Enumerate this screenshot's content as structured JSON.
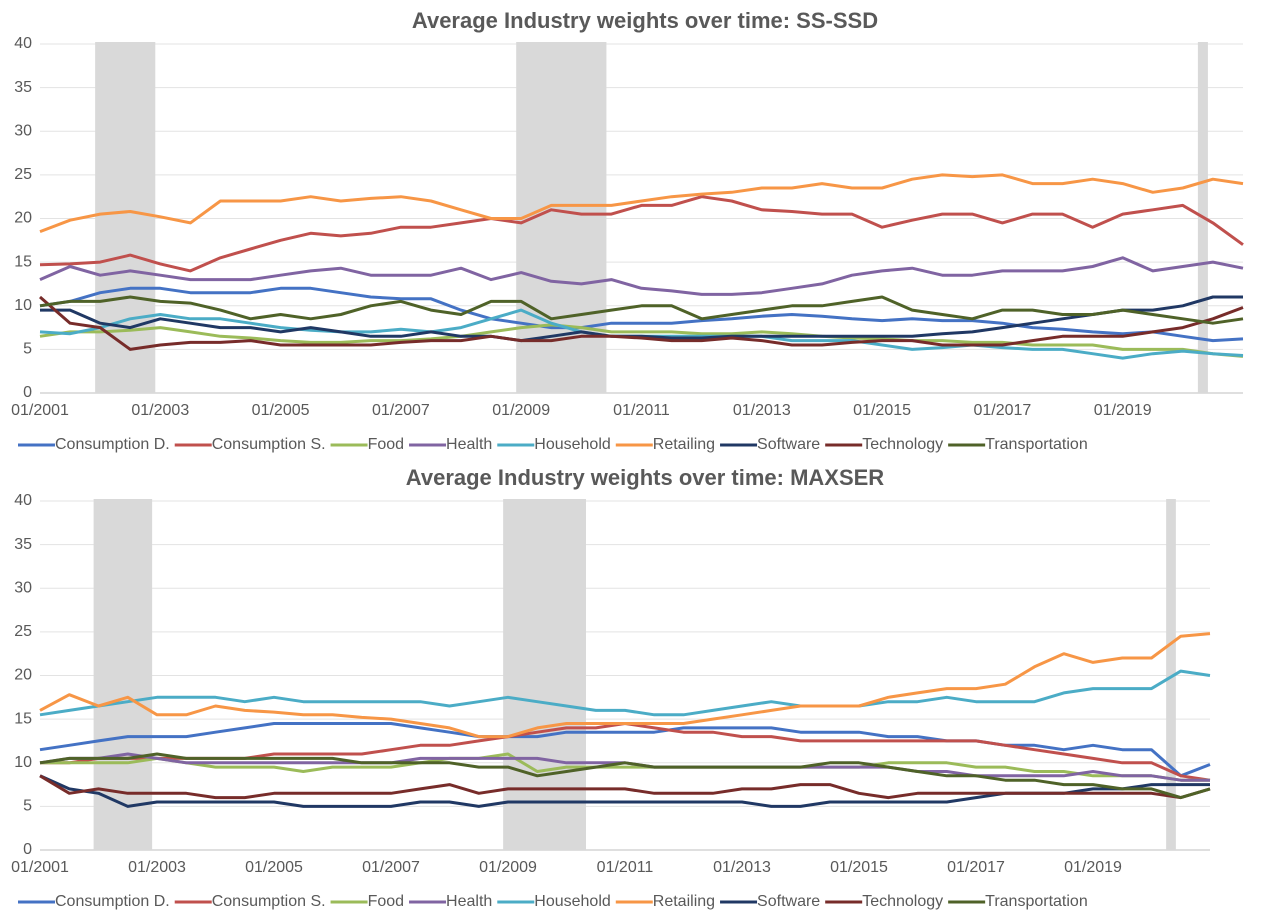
{
  "chart_data": [
    {
      "type": "line",
      "title": "Average Industry weights over time: SS-SSD",
      "x": [
        "01/2001",
        "07/2001",
        "01/2002",
        "07/2002",
        "01/2003",
        "07/2003",
        "01/2004",
        "07/2004",
        "01/2005",
        "07/2005",
        "01/2006",
        "07/2006",
        "01/2007",
        "07/2007",
        "01/2008",
        "07/2008",
        "01/2009",
        "07/2009",
        "01/2010",
        "07/2010",
        "01/2011",
        "07/2011",
        "01/2012",
        "07/2012",
        "01/2013",
        "07/2013",
        "01/2014",
        "07/2014",
        "01/2015",
        "07/2015",
        "01/2016",
        "07/2016",
        "01/2017",
        "07/2017",
        "01/2018",
        "07/2018",
        "01/2019",
        "07/2019",
        "01/2020",
        "07/2020",
        "01/2021"
      ],
      "xlim": [
        "01/2001",
        "01/2021"
      ],
      "xticks": [
        "01/2001",
        "01/2003",
        "01/2005",
        "01/2007",
        "01/2009",
        "01/2011",
        "01/2013",
        "01/2015",
        "01/2017",
        "01/2019"
      ],
      "ylim": [
        0,
        40
      ],
      "yticks": [
        0,
        5,
        10,
        15,
        20,
        25,
        30,
        35,
        40
      ],
      "grid": true,
      "shaded_periods": [
        {
          "start": "12/2001",
          "end": "12/2002"
        },
        {
          "start": "12/2008",
          "end": "06/2010"
        },
        {
          "start": "04/2020",
          "end": "06/2020"
        }
      ],
      "shade_color": "#d9d9d9",
      "legend": "bottom",
      "series": [
        {
          "name": "Consumption D.",
          "color": "#4472c4",
          "values": [
            10,
            10.5,
            11.5,
            12,
            12,
            11.5,
            11.5,
            11.5,
            12,
            12,
            11.5,
            11,
            10.8,
            10.8,
            9.5,
            8.5,
            8,
            7.5,
            7.5,
            8,
            8,
            8,
            8.3,
            8.5,
            8.8,
            9,
            8.8,
            8.5,
            8.3,
            8.5,
            8.3,
            8.3,
            8,
            7.5,
            7.3,
            7,
            6.8,
            7,
            6.5,
            6,
            6.2
          ]
        },
        {
          "name": "Consumption S.",
          "color": "#c0504d",
          "values": [
            14.7,
            14.8,
            15,
            15.8,
            14.8,
            14,
            15.5,
            16.5,
            17.5,
            18.3,
            18,
            18.3,
            19,
            19,
            19.5,
            20,
            19.5,
            21,
            20.5,
            20.5,
            21.5,
            21.5,
            22.5,
            22,
            21,
            20.8,
            20.5,
            20.5,
            19,
            19.8,
            20.5,
            20.5,
            19.5,
            20.5,
            20.5,
            19,
            20.5,
            21,
            21.5,
            19.5,
            17
          ]
        },
        {
          "name": "Food",
          "color": "#9bbb59",
          "values": [
            6.5,
            7,
            7,
            7.2,
            7.5,
            7,
            6.5,
            6.3,
            6,
            5.8,
            5.8,
            6,
            6,
            6.2,
            6.5,
            7,
            7.5,
            7.8,
            7.5,
            7,
            7,
            7,
            6.8,
            6.8,
            7,
            6.8,
            6.5,
            6.3,
            6.2,
            6,
            6,
            5.8,
            5.8,
            5.5,
            5.5,
            5.5,
            5,
            5,
            5,
            4.5,
            4.2
          ]
        },
        {
          "name": "Health",
          "color": "#8064a2",
          "values": [
            13,
            14.5,
            13.5,
            14,
            13.5,
            13,
            13,
            13,
            13.5,
            14,
            14.3,
            13.5,
            13.5,
            13.5,
            14.3,
            13,
            13.8,
            12.8,
            12.5,
            13,
            12,
            11.7,
            11.3,
            11.3,
            11.5,
            12,
            12.5,
            13.5,
            14,
            14.3,
            13.5,
            13.5,
            14,
            14,
            14,
            14.5,
            15.5,
            14,
            14.5,
            15,
            14.3
          ]
        },
        {
          "name": "Household",
          "color": "#4bacc6",
          "values": [
            7,
            6.8,
            7.5,
            8.5,
            9,
            8.5,
            8.5,
            8,
            7.5,
            7.2,
            7,
            7,
            7.3,
            7,
            7.5,
            8.5,
            9.5,
            8,
            7,
            6.5,
            6.5,
            6.5,
            6.5,
            6.5,
            6.5,
            6,
            6,
            6,
            5.5,
            5,
            5.2,
            5.5,
            5.2,
            5,
            5,
            4.5,
            4,
            4.5,
            4.8,
            4.5,
            4.3
          ]
        },
        {
          "name": "Retailing",
          "color": "#f79646",
          "values": [
            18.5,
            19.8,
            20.5,
            20.8,
            20.2,
            19.5,
            22,
            22,
            22,
            22.5,
            22,
            22.3,
            22.5,
            22,
            21,
            20,
            20,
            21.5,
            21.5,
            21.5,
            22,
            22.5,
            22.8,
            23,
            23.5,
            23.5,
            24,
            23.5,
            23.5,
            24.5,
            25,
            24.8,
            25,
            24,
            24,
            24.5,
            24,
            23,
            23.5,
            24.5,
            24
          ]
        },
        {
          "name": "Software",
          "color": "#203864",
          "values": [
            9.5,
            9.5,
            8,
            7.5,
            8.5,
            8,
            7.5,
            7.5,
            7,
            7.5,
            7,
            6.5,
            6.5,
            7,
            6.5,
            6.5,
            6,
            6.5,
            7,
            6.5,
            6.5,
            6.3,
            6.3,
            6.5,
            6.5,
            6.5,
            6.5,
            6.5,
            6.5,
            6.5,
            6.8,
            7,
            7.5,
            8,
            8.5,
            9,
            9.5,
            9.5,
            10,
            11,
            11
          ]
        },
        {
          "name": "Technology",
          "color": "#772c2a",
          "values": [
            11,
            8,
            7.5,
            5,
            5.5,
            5.8,
            5.8,
            6,
            5.5,
            5.5,
            5.5,
            5.5,
            5.8,
            6,
            6,
            6.5,
            6,
            6,
            6.5,
            6.5,
            6.3,
            6,
            6,
            6.3,
            6,
            5.5,
            5.5,
            5.8,
            6,
            6,
            5.5,
            5.5,
            5.5,
            6,
            6.5,
            6.5,
            6.5,
            7,
            7.5,
            8.5,
            9.8
          ]
        },
        {
          "name": "Transportation",
          "color": "#4f6228",
          "values": [
            10,
            10.5,
            10.5,
            11,
            10.5,
            10.3,
            9.5,
            8.5,
            9,
            8.5,
            9,
            10,
            10.5,
            9.5,
            9,
            10.5,
            10.5,
            8.5,
            9,
            9.5,
            10,
            10,
            8.5,
            9,
            9.5,
            10,
            10,
            10.5,
            11,
            9.5,
            9,
            8.5,
            9.5,
            9.5,
            9,
            9,
            9.5,
            9,
            8.5,
            8,
            8.5
          ]
        }
      ]
    },
    {
      "type": "line",
      "title": "Average Industry weights over time: MAXSER",
      "x": [
        "01/2001",
        "07/2001",
        "01/2002",
        "07/2002",
        "01/2003",
        "07/2003",
        "01/2004",
        "07/2004",
        "01/2005",
        "07/2005",
        "01/2006",
        "07/2006",
        "01/2007",
        "07/2007",
        "01/2008",
        "07/2008",
        "01/2009",
        "07/2009",
        "01/2010",
        "07/2010",
        "01/2011",
        "07/2011",
        "01/2012",
        "07/2012",
        "01/2013",
        "07/2013",
        "01/2014",
        "07/2014",
        "01/2015",
        "07/2015",
        "01/2016",
        "07/2016",
        "01/2017",
        "07/2017",
        "01/2018",
        "07/2018",
        "01/2019",
        "07/2019",
        "01/2020",
        "07/2020",
        "01/2021"
      ],
      "xlim": [
        "01/2001",
        "01/2021"
      ],
      "xticks": [
        "01/2001",
        "01/2003",
        "01/2005",
        "01/2007",
        "01/2009",
        "01/2011",
        "01/2013",
        "01/2015",
        "01/2017",
        "01/2019"
      ],
      "ylim": [
        0,
        40
      ],
      "yticks": [
        0,
        5,
        10,
        15,
        20,
        25,
        30,
        35,
        40
      ],
      "grid": true,
      "shaded_periods": [
        {
          "start": "12/2001",
          "end": "12/2002"
        },
        {
          "start": "12/2008",
          "end": "05/2010"
        },
        {
          "start": "04/2020",
          "end": "06/2020"
        }
      ],
      "shade_color": "#d9d9d9",
      "legend": "bottom",
      "series": [
        {
          "name": "Consumption D.",
          "color": "#4472c4",
          "values": [
            11.5,
            12,
            12.5,
            13,
            13,
            13,
            13.5,
            14,
            14.5,
            14.5,
            14.5,
            14.5,
            14.5,
            14,
            13.5,
            13,
            13,
            13,
            13.5,
            13.5,
            13.5,
            13.5,
            14,
            14,
            14,
            14,
            13.5,
            13.5,
            13.5,
            13,
            13,
            12.5,
            12.5,
            12,
            12,
            11.5,
            12,
            11.5,
            11.5,
            8.5,
            9.8
          ]
        },
        {
          "name": "Consumption S.",
          "color": "#c0504d",
          "values": [
            10,
            10,
            10.5,
            10.5,
            10.5,
            10.5,
            10.5,
            10.5,
            11,
            11,
            11,
            11,
            11.5,
            12,
            12,
            12.5,
            13,
            13.5,
            14,
            14,
            14.5,
            14,
            13.5,
            13.5,
            13,
            13,
            12.5,
            12.5,
            12.5,
            12.5,
            12.5,
            12.5,
            12.5,
            12,
            11.5,
            11,
            10.5,
            10,
            10,
            8.5,
            8
          ]
        },
        {
          "name": "Food",
          "color": "#9bbb59",
          "values": [
            10,
            10,
            10,
            10,
            10.5,
            10,
            9.5,
            9.5,
            9.5,
            9,
            9.5,
            9.5,
            9.5,
            10,
            10.5,
            10.5,
            11,
            9,
            9.5,
            9.5,
            9.5,
            9.5,
            9.5,
            9.5,
            9.5,
            9.5,
            9.5,
            9.5,
            9.5,
            10,
            10,
            10,
            9.5,
            9.5,
            9,
            9,
            8.5,
            8.5,
            8.5,
            8,
            8
          ]
        },
        {
          "name": "Health",
          "color": "#8064a2",
          "values": [
            10,
            10.5,
            10.5,
            11,
            10.5,
            10,
            10,
            10,
            10,
            10,
            10,
            10,
            10,
            10.5,
            10.5,
            10.5,
            10.5,
            10.5,
            10,
            10,
            10,
            9.5,
            9.5,
            9.5,
            9.5,
            9.5,
            9.5,
            9.5,
            9.5,
            9.5,
            9,
            9,
            8.5,
            8.5,
            8.5,
            8.5,
            9,
            8.5,
            8.5,
            8,
            8
          ]
        },
        {
          "name": "Household",
          "color": "#4bacc6",
          "values": [
            15.5,
            16,
            16.5,
            17,
            17.5,
            17.5,
            17.5,
            17,
            17.5,
            17,
            17,
            17,
            17,
            17,
            16.5,
            17,
            17.5,
            17,
            16.5,
            16,
            16,
            15.5,
            15.5,
            16,
            16.5,
            17,
            16.5,
            16.5,
            16.5,
            17,
            17,
            17.5,
            17,
            17,
            17,
            18,
            18.5,
            18.5,
            18.5,
            20.5,
            20
          ]
        },
        {
          "name": "Retailing",
          "color": "#f79646",
          "values": [
            16,
            17.8,
            16.5,
            17.5,
            15.5,
            15.5,
            16.5,
            16,
            15.8,
            15.5,
            15.5,
            15.2,
            15,
            14.5,
            14,
            13,
            13,
            14,
            14.5,
            14.5,
            14.5,
            14.5,
            14.5,
            15,
            15.5,
            16,
            16.5,
            16.5,
            16.5,
            17.5,
            18,
            18.5,
            18.5,
            19,
            21,
            22.5,
            21.5,
            22,
            22,
            24.5,
            24.8
          ]
        },
        {
          "name": "Software",
          "color": "#203864",
          "values": [
            8.5,
            7,
            6.5,
            5,
            5.5,
            5.5,
            5.5,
            5.5,
            5.5,
            5,
            5,
            5,
            5,
            5.5,
            5.5,
            5,
            5.5,
            5.5,
            5.5,
            5.5,
            5.5,
            5.5,
            5.5,
            5.5,
            5.5,
            5,
            5,
            5.5,
            5.5,
            5.5,
            5.5,
            5.5,
            6,
            6.5,
            6.5,
            6.5,
            7,
            7,
            7.5,
            7.5,
            7.5
          ]
        },
        {
          "name": "Technology",
          "color": "#772c2a",
          "values": [
            8.5,
            6.5,
            7,
            6.5,
            6.5,
            6.5,
            6,
            6,
            6.5,
            6.5,
            6.5,
            6.5,
            6.5,
            7,
            7.5,
            6.5,
            7,
            7,
            7,
            7,
            7,
            6.5,
            6.5,
            6.5,
            7,
            7,
            7.5,
            7.5,
            6.5,
            6,
            6.5,
            6.5,
            6.5,
            6.5,
            6.5,
            6.5,
            6.5,
            6.5,
            6.5,
            6,
            7
          ]
        },
        {
          "name": "Transportation",
          "color": "#4f6228",
          "values": [
            10,
            10.5,
            10.5,
            10.5,
            11,
            10.5,
            10.5,
            10.5,
            10.5,
            10.5,
            10.5,
            10,
            10,
            10,
            10,
            9.5,
            9.5,
            8.5,
            9,
            9.5,
            10,
            9.5,
            9.5,
            9.5,
            9.5,
            9.5,
            9.5,
            10,
            10,
            9.5,
            9,
            8.5,
            8.5,
            8,
            8,
            7.5,
            7.5,
            7,
            7,
            6,
            7
          ]
        }
      ]
    }
  ]
}
